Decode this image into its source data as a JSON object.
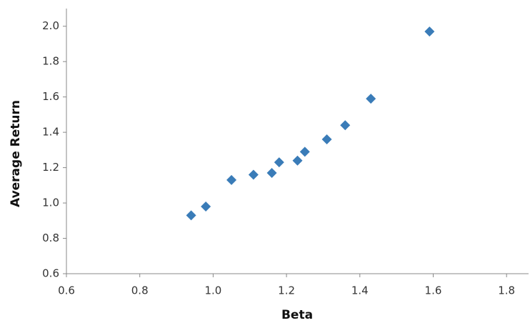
{
  "chart_data": {
    "type": "scatter",
    "x_label": "Beta",
    "y_label": "Average Return",
    "x": [
      0.94,
      0.98,
      1.05,
      1.11,
      1.16,
      1.18,
      1.23,
      1.25,
      1.31,
      1.36,
      1.43,
      1.59
    ],
    "values": [
      0.93,
      0.98,
      1.13,
      1.16,
      1.17,
      1.23,
      1.24,
      1.29,
      1.36,
      1.44,
      1.59,
      1.97
    ],
    "color": "#3a7cb8",
    "xlim": [
      0.6,
      1.86
    ],
    "ylim": [
      0.6,
      2.1
    ],
    "xticks": [
      0.6,
      0.8,
      {
        "value": 1.0,
        "label": "1.0"
      },
      1.2,
      1.4,
      1.6,
      1.8
    ],
    "yticks": [
      0.6,
      0.8,
      {
        "value": 1.0,
        "label": "1.0"
      },
      1.2,
      1.4,
      1.6,
      1.8,
      {
        "value": 2.0,
        "label": "2.0"
      }
    ],
    "grid": false
  }
}
